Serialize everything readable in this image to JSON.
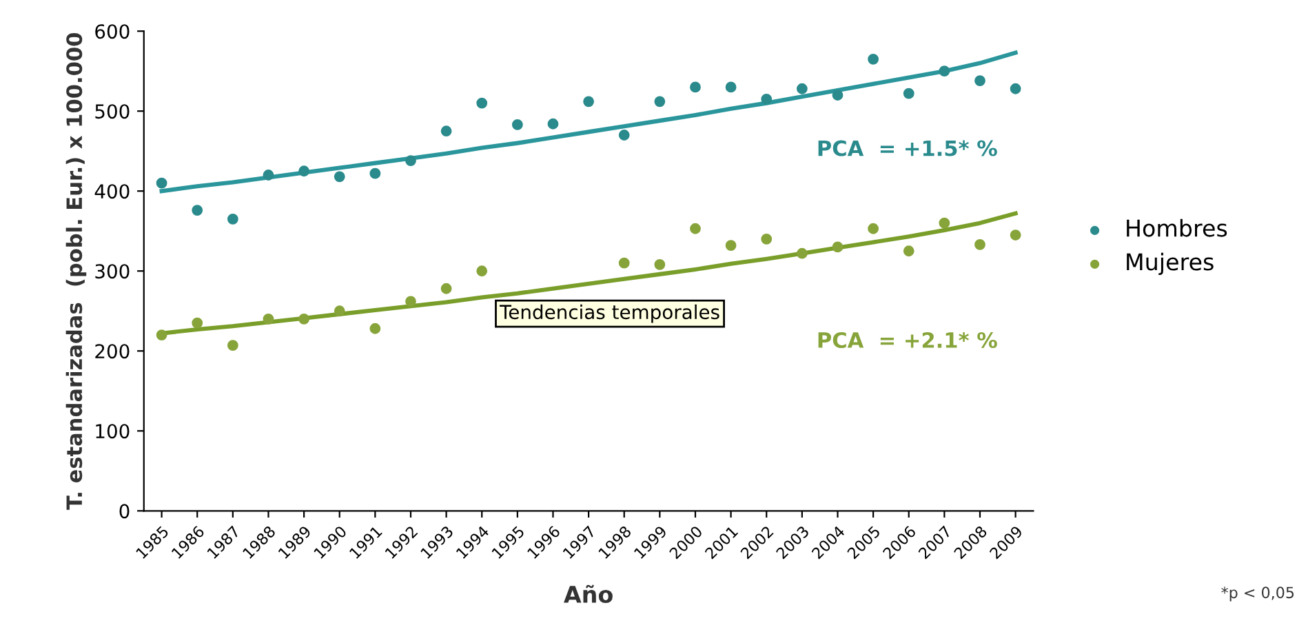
{
  "chart_data": {
    "type": "scatter",
    "ylabel": "T. estandarizadas  (pobl. Eur.) x 100.000",
    "xlabel": "Año",
    "categories": [
      "1985",
      "1986",
      "1987",
      "1988",
      "1989",
      "1990",
      "1991",
      "1992",
      "1993",
      "1994",
      "1995",
      "1996",
      "1997",
      "1998",
      "1999",
      "2000",
      "2001",
      "2002",
      "2003",
      "2004",
      "2005",
      "2006",
      "2007",
      "2008",
      "2009"
    ],
    "series": [
      {
        "name": "Hombres",
        "color": "#2a8a8c",
        "marker": "circle",
        "values": [
          410,
          376,
          365,
          420,
          425,
          418,
          422,
          438,
          475,
          510,
          483,
          484,
          512,
          470,
          512,
          530,
          530,
          515,
          528,
          520,
          565,
          522,
          550,
          538,
          528
        ]
      },
      {
        "name": "Mujeres",
        "color": "#87a43a",
        "marker": "circle",
        "values": [
          220,
          235,
          207,
          240,
          240,
          250,
          228,
          262,
          278,
          300,
          null,
          null,
          null,
          310,
          308,
          353,
          332,
          340,
          322,
          330,
          353,
          325,
          360,
          333,
          345
        ]
      },
      {
        "type": "line",
        "color": "#2a969c",
        "values": [
          400,
          406,
          411,
          417,
          423,
          429,
          435,
          441,
          447,
          454,
          460,
          467,
          474,
          481,
          488,
          495,
          503,
          510,
          518,
          526,
          534,
          542,
          550,
          560,
          573
        ]
      },
      {
        "type": "line",
        "color": "#7a9e2a",
        "values": [
          222,
          227,
          231,
          236,
          241,
          246,
          251,
          256,
          261,
          267,
          272,
          278,
          284,
          290,
          296,
          302,
          309,
          315,
          322,
          329,
          336,
          343,
          351,
          360,
          372
        ]
      }
    ],
    "annotations": [
      "PCA  = +1.5* %",
      "PCA  = +2.1* %",
      "Tendencias temporales",
      "*p < 0,05"
    ],
    "ylim": [
      0,
      600
    ],
    "yticks": [
      0,
      100,
      200,
      300,
      400,
      500,
      600
    ],
    "legend": "right",
    "grid": false
  }
}
